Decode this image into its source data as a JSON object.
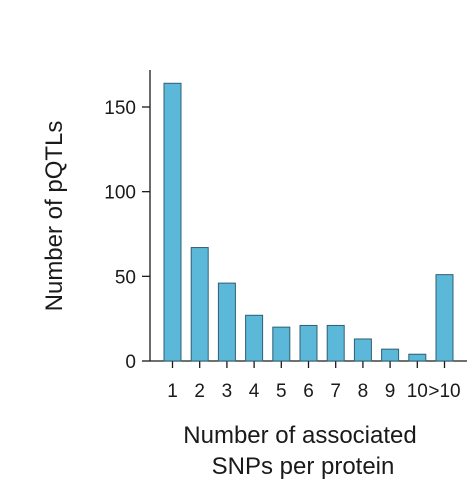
{
  "chart_data": {
    "type": "bar",
    "categories": [
      "1",
      "2",
      "3",
      "4",
      "5",
      "6",
      "7",
      "8",
      "9",
      "10",
      ">10"
    ],
    "values": [
      164,
      67,
      46,
      27,
      20,
      21,
      21,
      13,
      7,
      4,
      51
    ],
    "xlabel_lines": [
      "Number of associated",
      "SNPs per protein"
    ],
    "ylabel": "Number of pQTLs",
    "ylim": [
      0,
      170
    ],
    "yticks": [
      0,
      50,
      100,
      150
    ],
    "grid": false,
    "colors": {
      "bar_fill": "#5bb8d8",
      "bar_stroke": "#2f5f73"
    }
  }
}
